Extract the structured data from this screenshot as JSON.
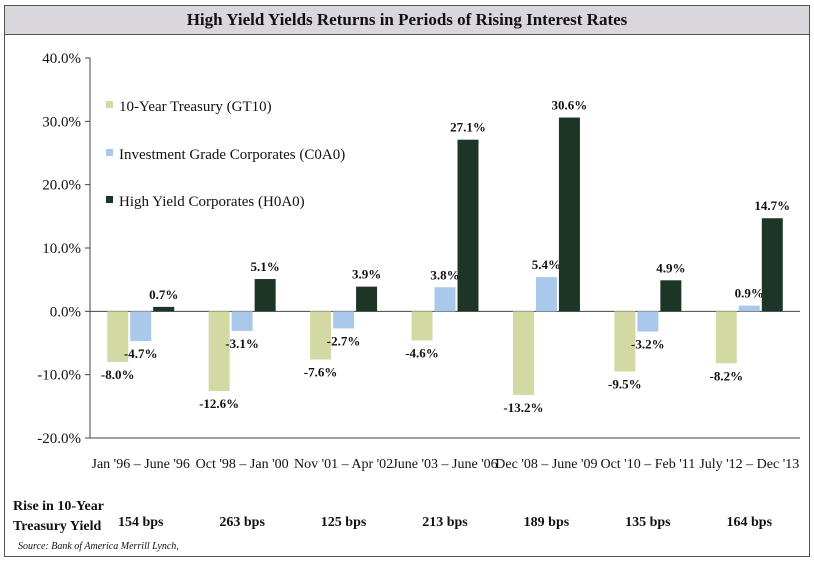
{
  "title": "High Yield Yields Returns in Periods of Rising Interest Rates",
  "rise_label_line1": "Rise in 10-Year",
  "rise_label_line2": "Treasury Yield",
  "rise_bps": [
    "154 bps",
    "263 bps",
    "125 bps",
    "213 bps",
    "189 bps",
    "135 bps",
    "164 bps"
  ],
  "source": "Source: Bank of America Merrill Lynch,",
  "colors": {
    "treasury": "#d3d9a2",
    "ig": "#a9c8ea",
    "hy": "#1c3527",
    "axis": "#444444"
  },
  "chart_data": {
    "type": "bar",
    "title": "High Yield Yields Returns in Periods of Rising Interest Rates",
    "categories": [
      "Jan '96 – June '96",
      "Oct '98 – Jan '00",
      "Nov '01 – Apr '02",
      "June '03 – June '06",
      "Dec '08 – June '09",
      "Oct '10 – Feb '11",
      "July '12 – Dec '13"
    ],
    "series": [
      {
        "name": "10-Year Treasury (GT10)",
        "values": [
          -8.0,
          -12.6,
          -7.6,
          -4.6,
          -13.2,
          -9.5,
          -8.2
        ],
        "labels": [
          "-8.0%",
          "-12.6%",
          "-7.6%",
          "-4.6%",
          "-13.2%",
          "-9.5%",
          "-8.2%"
        ]
      },
      {
        "name": "Investment Grade Corporates (C0A0)",
        "values": [
          -4.7,
          -3.1,
          -2.7,
          3.8,
          5.4,
          -3.2,
          0.9
        ],
        "labels": [
          "-4.7%",
          "-3.1%",
          "-2.7%",
          "3.8%",
          "5.4%",
          "-3.2%",
          "0.9%"
        ]
      },
      {
        "name": "High Yield Corporates (H0A0)",
        "values": [
          0.7,
          5.1,
          3.9,
          27.1,
          30.6,
          4.9,
          14.7
        ],
        "labels": [
          "0.7%",
          "5.1%",
          "3.9%",
          "27.1%",
          "30.6%",
          "4.9%",
          "14.7%"
        ]
      }
    ],
    "ylim": [
      -20,
      40
    ],
    "yticks": [
      -20,
      -10,
      0,
      10,
      20,
      30,
      40
    ],
    "ytick_labels": [
      "-20.0%",
      "-10.0%",
      "0.0%",
      "10.0%",
      "20.0%",
      "30.0%",
      "40.0%"
    ],
    "legend_position": "top-left",
    "grid": false
  }
}
